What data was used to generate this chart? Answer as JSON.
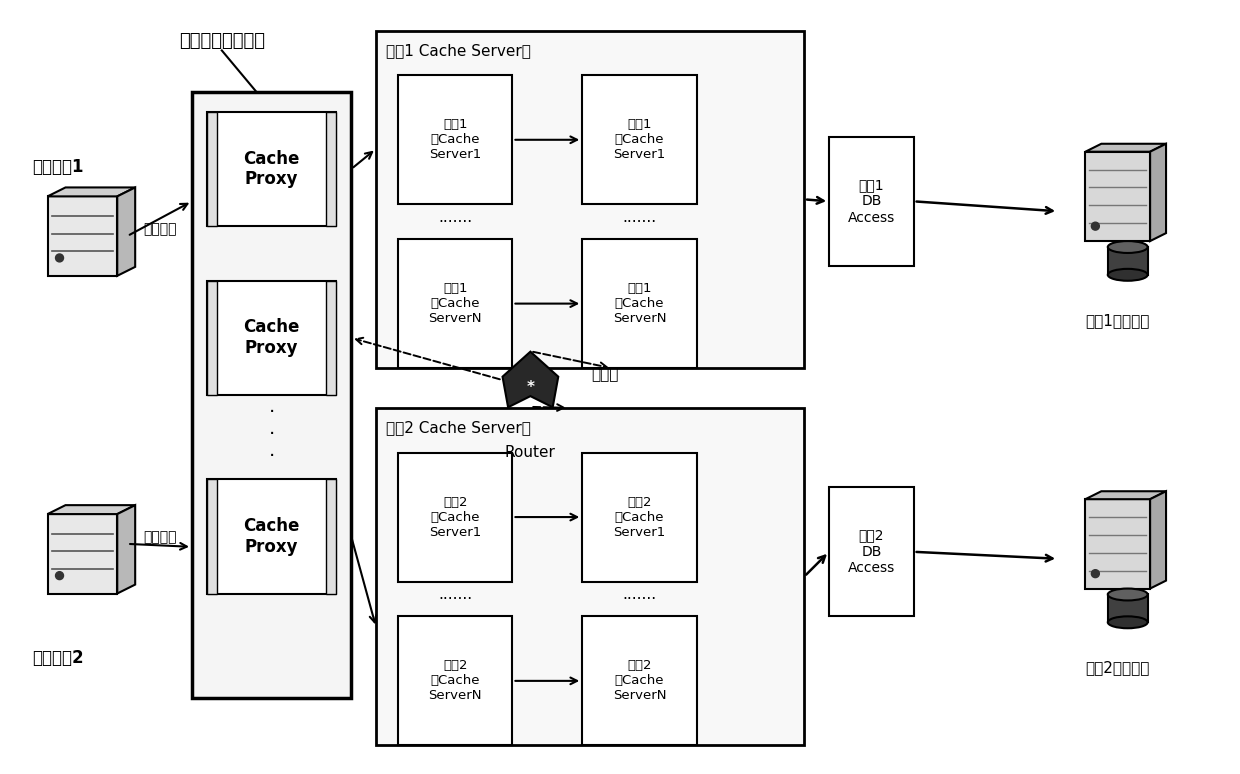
{
  "bg_color": "#ffffff",
  "fig_width": 12.4,
  "fig_height": 7.74,
  "label_duoge": "多个代理服务模块",
  "label_yewu1": "业务应用1",
  "label_yewu2": "业务应用2",
  "label_shuju1": "数据操作",
  "label_shuju2": "数据操作",
  "label_cache_server_group1": "业务1 Cache Server群",
  "label_cache_server_group2": "业务2 Cache Server群",
  "label_router_cn": "路由器",
  "label_router_en": "Router",
  "label_yewu1_storage": "业务1存储介质",
  "label_yewu2_storage": "业务2存储介质",
  "label_db1": "业务1\nDB\nAccess",
  "label_db2": "业务2\nDB\nAccess",
  "label_proxy": "Cache\nProxy",
  "label_cache1_m1": "业务1\n主Cache\nServer1",
  "label_cache1_b1": "业务1\n备Cache\nServer1",
  "label_cache1_mN": "业务1\n主Cache\nServerN",
  "label_cache1_bN": "业务1\n备Cache\nServerN",
  "label_cache2_m1": "业务2\n主Cache\nServer1",
  "label_cache2_b1": "业务2\n备Cache\nServer1",
  "label_cache2_mN": "业务2\n主Cache\nServerN",
  "label_cache2_bN": "业务2\n备Cache\nServerN"
}
